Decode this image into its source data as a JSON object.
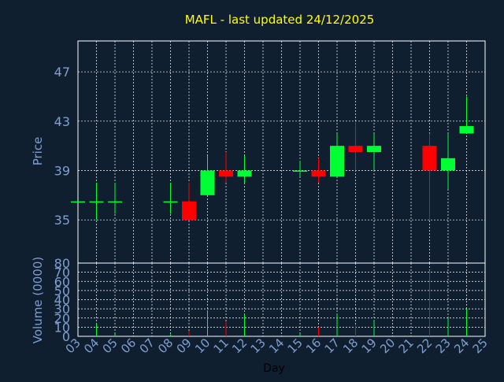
{
  "colors": {
    "background": "#0f1f30",
    "title": "#ffff00",
    "axis_text": "#7f9fd0",
    "day_label": "#000000",
    "frame": "#ffffff",
    "up": "#00ff33",
    "down": "#ff0000"
  },
  "chart_data": [
    {
      "type": "candlestick",
      "title": "MAFL - last updated 24/12/2025",
      "ylabel": "Price",
      "ylim": [
        31.5,
        49.5
      ],
      "yticks": [
        35,
        39,
        43,
        47
      ],
      "grid": true,
      "x_days": [
        "03",
        "04",
        "05",
        "06",
        "07",
        "08",
        "09",
        "10",
        "11",
        "12",
        "13",
        "14",
        "15",
        "16",
        "17",
        "18",
        "19",
        "20",
        "21",
        "22",
        "23",
        "24",
        "25"
      ],
      "candles": [
        {
          "day": "03",
          "open": 36.5,
          "close": 36.5,
          "high": 36.5,
          "low": 36.5
        },
        {
          "day": "04",
          "open": 36.5,
          "close": 36.5,
          "high": 38.0,
          "low": 35.0
        },
        {
          "day": "05",
          "open": 36.5,
          "close": 36.5,
          "high": 38.0,
          "low": 35.5
        },
        {
          "day": "08",
          "open": 36.5,
          "close": 36.5,
          "high": 38.0,
          "low": 35.5
        },
        {
          "day": "09",
          "open": 36.5,
          "close": 35.0,
          "high": 38.0,
          "low": 35.0
        },
        {
          "day": "10",
          "open": 37.0,
          "close": 39.0,
          "high": 40.2,
          "low": 37.0
        },
        {
          "day": "11",
          "open": 39.0,
          "close": 38.5,
          "high": 40.5,
          "low": 38.0
        },
        {
          "day": "12",
          "open": 38.5,
          "close": 39.0,
          "high": 40.2,
          "low": 38.0
        },
        {
          "day": "15",
          "open": 39.0,
          "close": 39.0,
          "high": 39.8,
          "low": 38.5
        },
        {
          "day": "16",
          "open": 39.0,
          "close": 38.5,
          "high": 40.0,
          "low": 38.0
        },
        {
          "day": "17",
          "open": 38.5,
          "close": 41.0,
          "high": 42.0,
          "low": 38.5
        },
        {
          "day": "18",
          "open": 41.0,
          "close": 40.5,
          "high": 43.0,
          "low": 39.0
        },
        {
          "day": "19",
          "open": 40.5,
          "close": 41.0,
          "high": 42.0,
          "low": 39.0
        },
        {
          "day": "22",
          "open": 41.0,
          "close": 39.0,
          "high": 42.0,
          "low": 35.0
        },
        {
          "day": "23",
          "open": 39.0,
          "close": 40.0,
          "high": 42.0,
          "low": 37.5
        },
        {
          "day": "24",
          "open": 42.0,
          "close": 42.6,
          "high": 45.0,
          "low": 42.0
        }
      ]
    },
    {
      "type": "bar",
      "ylabel": "Volume (0000)",
      "xlabel": "Day",
      "ylim": [
        0,
        80
      ],
      "yticks": [
        0,
        10,
        20,
        30,
        40,
        50,
        60,
        70,
        80
      ],
      "grid": true,
      "categories": [
        "03",
        "04",
        "05",
        "06",
        "07",
        "08",
        "09",
        "10",
        "11",
        "12",
        "13",
        "14",
        "15",
        "16",
        "17",
        "18",
        "19",
        "20",
        "21",
        "22",
        "23",
        "24",
        "25"
      ],
      "bars": [
        {
          "day": "04",
          "value": 14,
          "dir": "up"
        },
        {
          "day": "05",
          "value": 3,
          "dir": "up"
        },
        {
          "day": "08",
          "value": 2,
          "dir": "up"
        },
        {
          "day": "09",
          "value": 6,
          "dir": "down"
        },
        {
          "day": "10",
          "value": 28,
          "dir": "up"
        },
        {
          "day": "11",
          "value": 16,
          "dir": "down"
        },
        {
          "day": "12",
          "value": 24,
          "dir": "up"
        },
        {
          "day": "15",
          "value": 3,
          "dir": "up"
        },
        {
          "day": "16",
          "value": 10,
          "dir": "down"
        },
        {
          "day": "17",
          "value": 24,
          "dir": "up"
        },
        {
          "day": "18",
          "value": 12,
          "dir": "down"
        },
        {
          "day": "19",
          "value": 18,
          "dir": "up"
        },
        {
          "day": "22",
          "value": 72,
          "dir": "down"
        },
        {
          "day": "23",
          "value": 20,
          "dir": "up"
        },
        {
          "day": "24",
          "value": 30,
          "dir": "up"
        }
      ]
    }
  ]
}
